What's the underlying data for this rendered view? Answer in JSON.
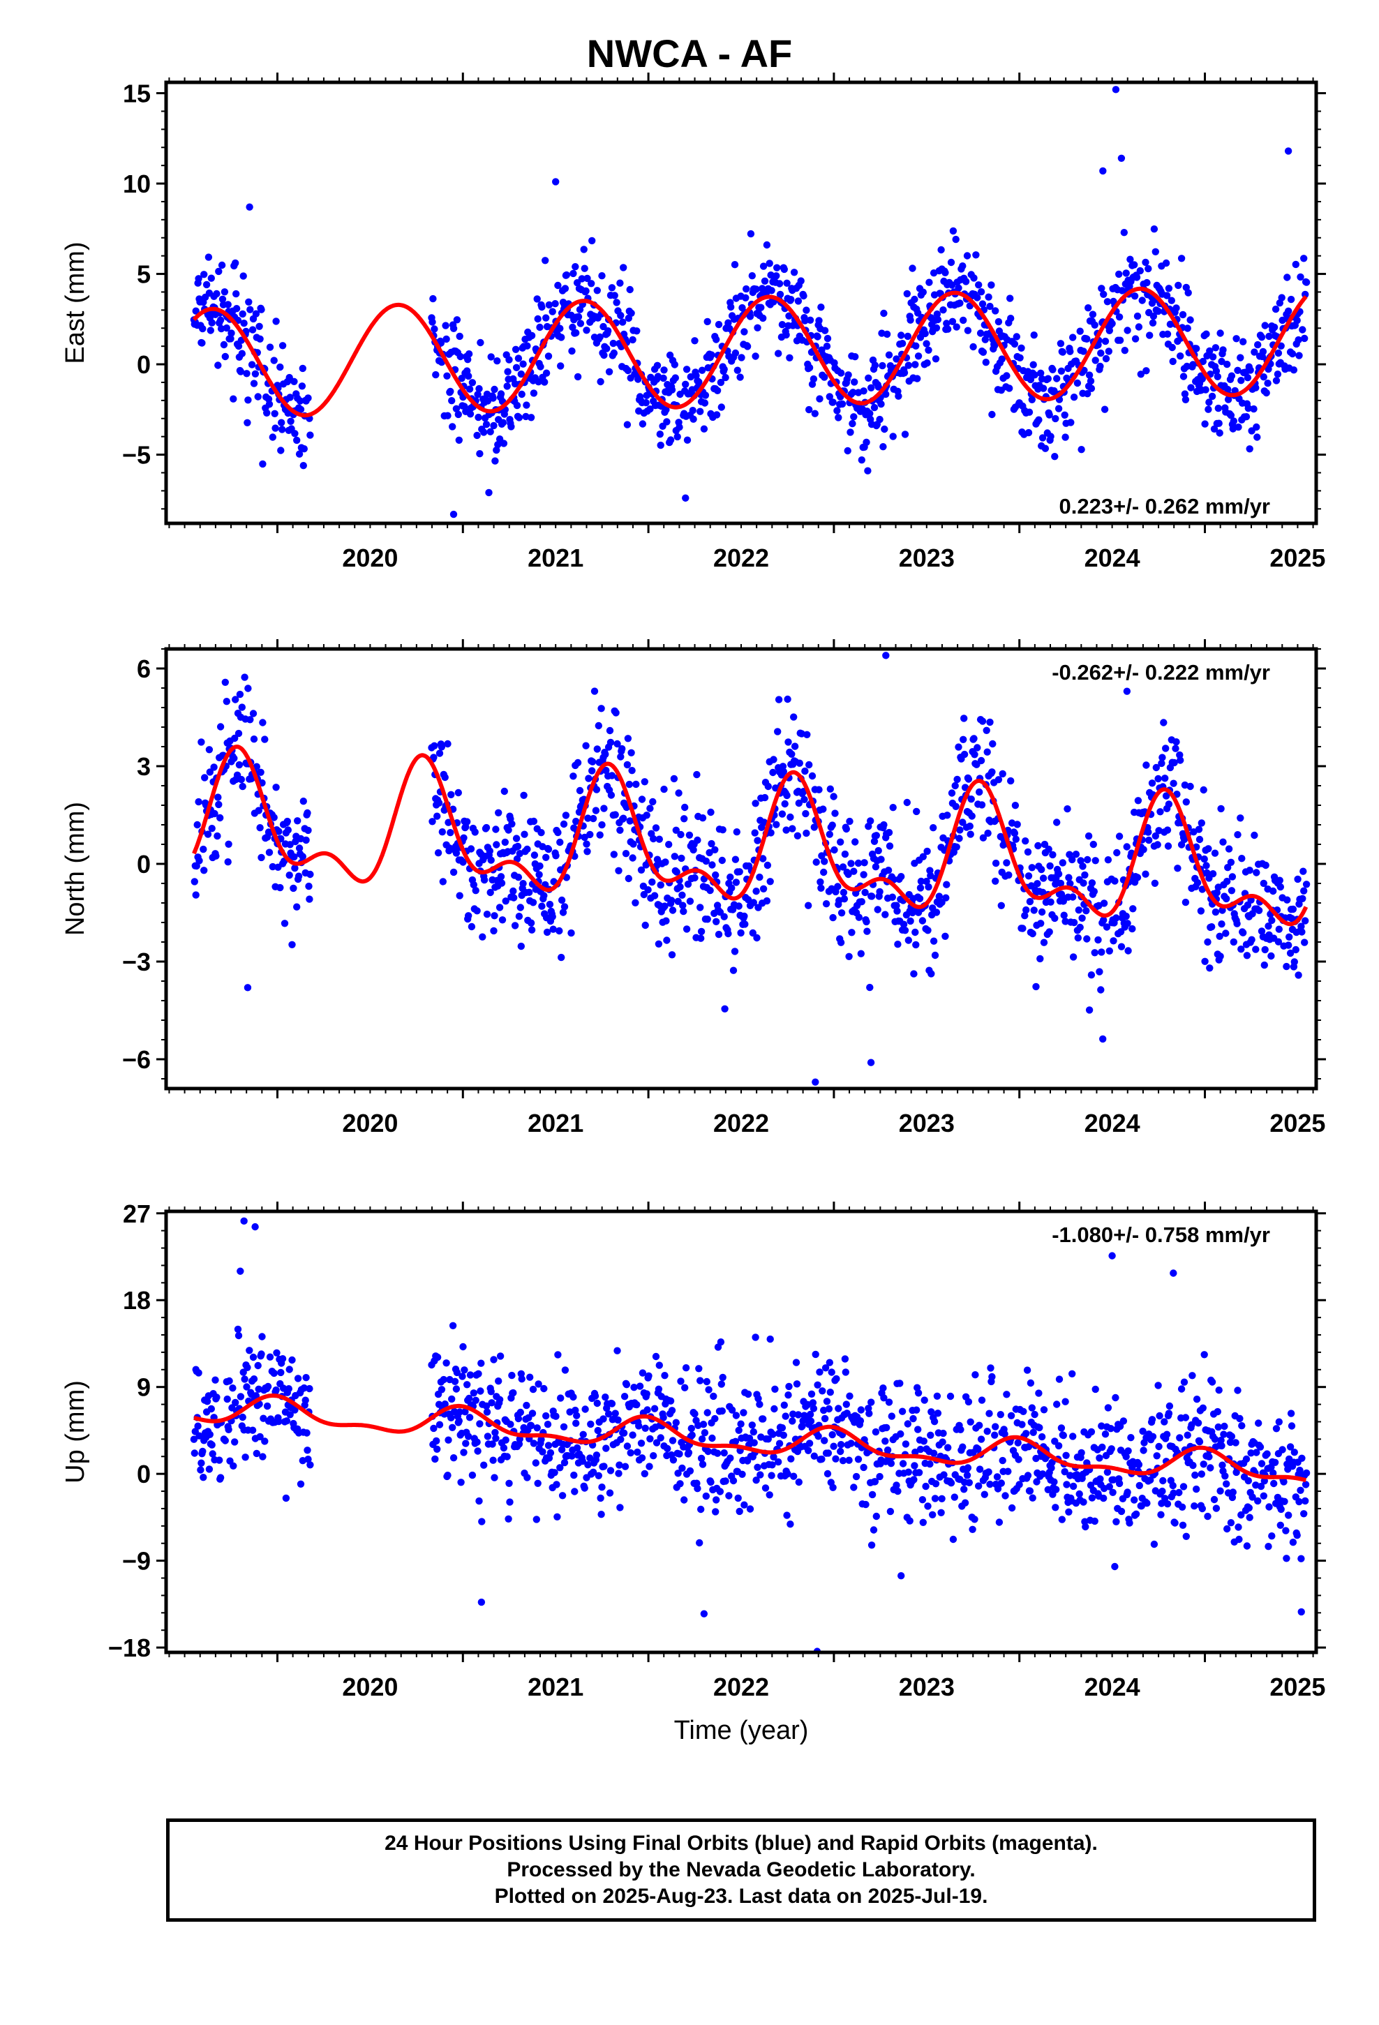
{
  "title": "NWCA - AF",
  "footer": {
    "line1": "24 Hour Positions Using Final Orbits (blue) and Rapid Orbits (magenta).",
    "line2": "Processed by the Nevada Geodetic Laboratory.",
    "line3": "Plotted on 2025-Aug-23. Last data on 2025-Jul-19."
  },
  "colors": {
    "points": "#0000ff",
    "model": "#ff0000",
    "axis": "#000000"
  },
  "chart_data": [
    {
      "type": "scatter",
      "ylabel": "East (mm)",
      "xlabel": "",
      "rate_label": "0.223+/- 0.262 mm/yr",
      "rate_position": "bottom-right",
      "xlim": [
        2019.4,
        2025.6
      ],
      "ylim": [
        -8.8,
        15.6
      ],
      "yticks": [
        -5,
        0,
        5,
        10,
        15
      ],
      "ytick_labels": [
        "−5",
        "0",
        "5",
        "10",
        "15"
      ],
      "xticks": [
        2020,
        2021,
        2022,
        2023,
        2024,
        2025
      ],
      "series": [
        {
          "kind": "points",
          "annual_amplitude": 3.0,
          "semiannual_amplitude": 0.0,
          "phase": 0.4,
          "offset": 0.7,
          "trend": 0.223,
          "noise": 1.5,
          "outliers": [
            [
              2019.85,
              8.7
            ],
            [
              2021.5,
              10.1
            ],
            [
              2024.52,
              15.2
            ],
            [
              2024.45,
              10.7
            ],
            [
              2025.45,
              11.8
            ],
            [
              2020.95,
              -8.3
            ],
            [
              2021.14,
              -7.1
            ],
            [
              2022.2,
              -7.4
            ],
            [
              2024.55,
              11.4
            ]
          ]
        },
        {
          "kind": "model",
          "annual_amplitude": 3.0,
          "semiannual_amplitude": 0.0,
          "phase": 0.4,
          "offset": 0.7,
          "trend": 0.223
        }
      ]
    },
    {
      "type": "scatter",
      "ylabel": "North (mm)",
      "xlabel": "",
      "rate_label": "-0.262+/- 0.222 mm/yr",
      "rate_position": "top-right",
      "xlim": [
        2019.4,
        2025.6
      ],
      "ylim": [
        -6.9,
        6.6
      ],
      "yticks": [
        -6,
        -3,
        0,
        3,
        6
      ],
      "ytick_labels": [
        "−6",
        "−3",
        "0",
        "3",
        "6"
      ],
      "xticks": [
        2020,
        2021,
        2022,
        2023,
        2024,
        2025
      ],
      "series": [
        {
          "kind": "points",
          "annual_amplitude": 1.6,
          "semiannual_amplitude": 0.9,
          "phase": 0.55,
          "offset": 0.4,
          "trend": -0.262,
          "noise": 1.1,
          "outliers": [
            [
              2023.28,
              6.4
            ],
            [
              2019.84,
              -3.8
            ],
            [
              2022.9,
              -6.7
            ],
            [
              2023.2,
              -6.1
            ],
            [
              2024.58,
              5.3
            ]
          ]
        },
        {
          "kind": "model",
          "annual_amplitude": 1.6,
          "semiannual_amplitude": 0.9,
          "phase": 0.55,
          "offset": 0.4,
          "trend": -0.262
        }
      ]
    },
    {
      "type": "scatter",
      "ylabel": "Up (mm)",
      "xlabel": "Time (year)",
      "rate_label": "-1.080+/- 0.758 mm/yr",
      "rate_position": "top-right",
      "xlim": [
        2019.4,
        2025.6
      ],
      "ylim": [
        -18.5,
        27.2
      ],
      "yticks": [
        -18,
        -9,
        0,
        9,
        18,
        27
      ],
      "ytick_labels": [
        "−18",
        "−9",
        "0",
        "9",
        "18",
        "27"
      ],
      "xticks": [
        2020,
        2021,
        2022,
        2023,
        2024,
        2025
      ],
      "series": [
        {
          "kind": "points",
          "annual_amplitude": 1.3,
          "semiannual_amplitude": 0.6,
          "phase": 0.75,
          "offset": 3.5,
          "trend": -1.08,
          "noise": 3.6,
          "outliers": [
            [
              2019.82,
              26.2
            ],
            [
              2019.88,
              25.6
            ],
            [
              2019.8,
              21.0
            ],
            [
              2024.5,
              22.6
            ],
            [
              2024.83,
              20.8
            ],
            [
              2022.91,
              -18.4
            ],
            [
              2021.1,
              -13.3
            ],
            [
              2025.52,
              -14.3
            ],
            [
              2022.3,
              -14.5
            ]
          ]
        },
        {
          "kind": "model",
          "annual_amplitude": 1.3,
          "semiannual_amplitude": 0.6,
          "phase": 0.75,
          "offset": 3.5,
          "trend": -1.08
        }
      ]
    }
  ]
}
